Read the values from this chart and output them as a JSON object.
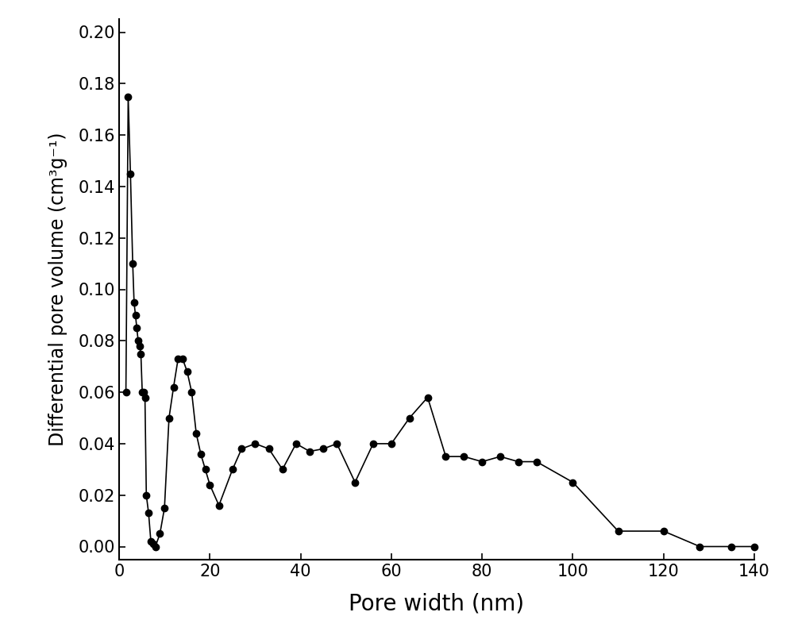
{
  "x": [
    1.5,
    2.0,
    2.5,
    3.0,
    3.3,
    3.6,
    3.9,
    4.2,
    4.5,
    4.8,
    5.1,
    5.4,
    5.7,
    6.0,
    6.5,
    7.0,
    7.5,
    8.0,
    9.0,
    10.0,
    11.0,
    12.0,
    13.0,
    14.0,
    15.0,
    16.0,
    17.0,
    18.0,
    19.0,
    20.0,
    22.0,
    25.0,
    27.0,
    30.0,
    33.0,
    36.0,
    39.0,
    42.0,
    45.0,
    48.0,
    52.0,
    56.0,
    60.0,
    64.0,
    68.0,
    72.0,
    76.0,
    80.0,
    84.0,
    88.0,
    92.0,
    100.0,
    110.0,
    120.0,
    128.0,
    135.0,
    140.0
  ],
  "y": [
    0.06,
    0.175,
    0.145,
    0.11,
    0.095,
    0.09,
    0.085,
    0.08,
    0.078,
    0.075,
    0.06,
    0.06,
    0.058,
    0.02,
    0.013,
    0.002,
    0.001,
    0.0,
    0.005,
    0.015,
    0.05,
    0.062,
    0.073,
    0.073,
    0.068,
    0.06,
    0.044,
    0.036,
    0.03,
    0.024,
    0.016,
    0.03,
    0.038,
    0.04,
    0.038,
    0.03,
    0.04,
    0.037,
    0.038,
    0.04,
    0.025,
    0.04,
    0.04,
    0.05,
    0.058,
    0.035,
    0.035,
    0.033,
    0.035,
    0.033,
    0.033,
    0.025,
    0.006,
    0.006,
    0.0,
    0.0,
    0.0
  ],
  "xlabel": "Pore width (nm)",
  "ylabel": "Differential pore volume (cm³g⁻¹)",
  "xlim": [
    0,
    140
  ],
  "ylim": [
    -0.005,
    0.205
  ],
  "xticks": [
    0,
    20,
    40,
    60,
    80,
    100,
    120,
    140
  ],
  "yticks": [
    0.0,
    0.02,
    0.04,
    0.06,
    0.08,
    0.1,
    0.12,
    0.14,
    0.16,
    0.18,
    0.2
  ],
  "line_color": "#000000",
  "marker_color": "#000000",
  "bg_color": "#ffffff",
  "marker_size": 6,
  "line_width": 1.2,
  "xlabel_fontsize": 20,
  "ylabel_fontsize": 17,
  "tick_fontsize": 15
}
